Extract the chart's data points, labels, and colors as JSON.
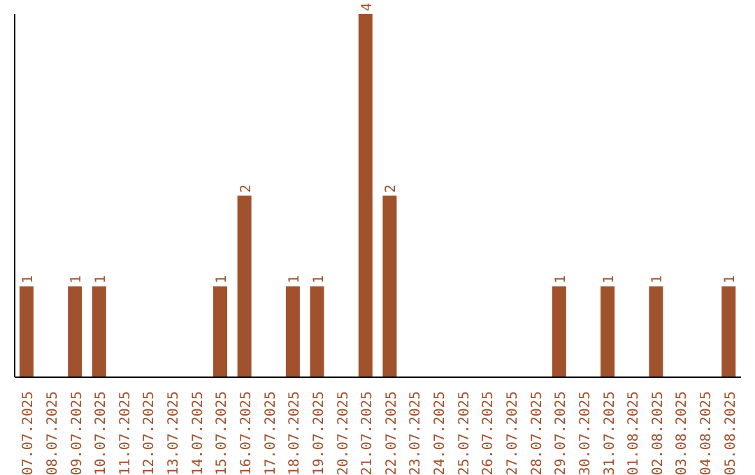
{
  "chart_data": {
    "type": "bar",
    "categories": [
      "07.07.2025",
      "08.07.2025",
      "09.07.2025",
      "10.07.2025",
      "11.07.2025",
      "12.07.2025",
      "13.07.2025",
      "14.07.2025",
      "15.07.2025",
      "16.07.2025",
      "17.07.2025",
      "18.07.2025",
      "19.07.2025",
      "20.07.2025",
      "21.07.2025",
      "22.07.2025",
      "23.07.2025",
      "24.07.2025",
      "25.07.2025",
      "26.07.2025",
      "27.07.2025",
      "28.07.2025",
      "29.07.2025",
      "30.07.2025",
      "31.07.2025",
      "01.08.2025",
      "02.08.2025",
      "03.08.2025",
      "04.08.2025",
      "05.08.2025"
    ],
    "values": [
      1,
      0,
      1,
      1,
      0,
      0,
      0,
      0,
      1,
      2,
      0,
      1,
      1,
      0,
      4,
      2,
      0,
      0,
      0,
      0,
      0,
      0,
      1,
      0,
      1,
      0,
      1,
      0,
      0,
      1
    ],
    "value_labels": [
      "1",
      null,
      "1",
      "1",
      null,
      null,
      null,
      null,
      "1",
      "2",
      null,
      "1",
      "1",
      null,
      "4",
      "2",
      null,
      null,
      null,
      null,
      null,
      null,
      "1",
      null,
      "1",
      null,
      "1",
      null,
      null,
      "1"
    ],
    "color": "#a0522d",
    "ylim": [
      0,
      4
    ],
    "tick_labels": "x"
  }
}
